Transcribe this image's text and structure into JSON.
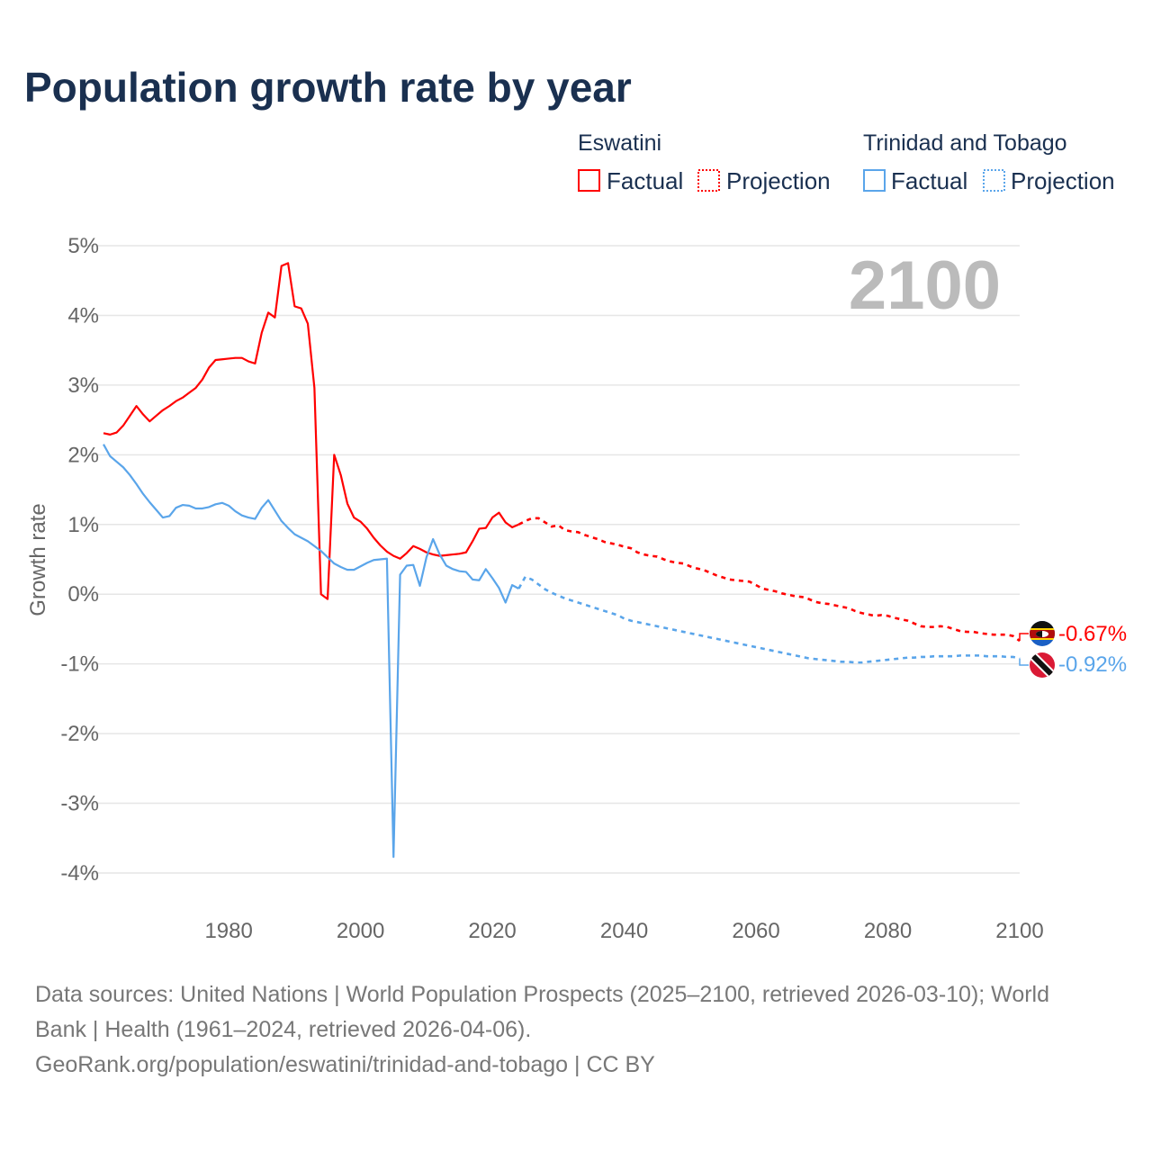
{
  "chart_data": {
    "type": "line",
    "title": "Population growth rate by year",
    "ylabel": "Growth rate",
    "xlabel": "",
    "xlim": [
      1961,
      2100
    ],
    "ylim": [
      -4,
      5
    ],
    "x_ticks": [
      "1980",
      "2000",
      "2020",
      "2040",
      "2060",
      "2080",
      "2100"
    ],
    "y_ticks": [
      "5%",
      "4%",
      "3%",
      "2%",
      "1%",
      "0%",
      "-1%",
      "-2%",
      "-3%",
      "-4%"
    ],
    "y_tick_values": [
      5,
      4,
      3,
      2,
      1,
      0,
      -1,
      -2,
      -3,
      -4
    ],
    "x_tick_values": [
      1980,
      2000,
      2020,
      2040,
      2060,
      2080,
      2100
    ],
    "current_year_label": "2100",
    "legend": {
      "groups": [
        {
          "country": "Eswatini",
          "factual": "Factual",
          "projection": "Projection"
        },
        {
          "country": "Trinidad and Tobago",
          "factual": "Factual",
          "projection": "Projection"
        }
      ]
    },
    "series": [
      {
        "name": "Eswatini",
        "color": "#ff0000",
        "end_label": "-0.67%",
        "factual_start_year": 1961,
        "factual": [
          2.31,
          2.29,
          2.32,
          2.42,
          2.56,
          2.7,
          2.58,
          2.48,
          2.56,
          2.64,
          2.7,
          2.77,
          2.82,
          2.89,
          2.96,
          3.08,
          3.25,
          3.36,
          3.37,
          3.38,
          3.39,
          3.39,
          3.34,
          3.31,
          3.75,
          4.04,
          3.97,
          4.71,
          4.75,
          4.13,
          4.1,
          3.88,
          2.96,
          0.0,
          -0.07,
          2.0,
          1.71,
          1.3,
          1.1,
          1.04,
          0.94,
          0.81,
          0.7,
          0.61,
          0.55,
          0.51,
          0.59,
          0.69,
          0.65,
          0.6,
          0.57,
          0.55,
          0.56,
          0.57,
          0.58,
          0.6,
          0.76,
          0.94,
          0.95,
          1.1,
          1.17,
          1.03,
          0.96,
          1.0
        ],
        "projection_start_year": 2025,
        "projection": [
          1.05,
          1.09,
          1.09,
          1.03,
          0.97,
          0.99,
          0.92,
          0.9,
          0.89,
          0.85,
          0.82,
          0.79,
          0.75,
          0.73,
          0.71,
          0.68,
          0.66,
          0.6,
          0.57,
          0.55,
          0.54,
          0.5,
          0.47,
          0.45,
          0.44,
          0.4,
          0.37,
          0.35,
          0.31,
          0.27,
          0.24,
          0.21,
          0.2,
          0.19,
          0.18,
          0.13,
          0.08,
          0.06,
          0.04,
          0.01,
          -0.01,
          -0.03,
          -0.04,
          -0.07,
          -0.11,
          -0.13,
          -0.14,
          -0.16,
          -0.18,
          -0.2,
          -0.24,
          -0.27,
          -0.29,
          -0.31,
          -0.3,
          -0.31,
          -0.34,
          -0.36,
          -0.38,
          -0.42,
          -0.46,
          -0.47,
          -0.47,
          -0.46,
          -0.47,
          -0.5,
          -0.53,
          -0.54,
          -0.54,
          -0.56,
          -0.57,
          -0.58,
          -0.58,
          -0.58,
          -0.6,
          -0.67
        ]
      },
      {
        "name": "Trinidad and Tobago",
        "color": "#5aa5ea",
        "end_label": "-0.92%",
        "factual_start_year": 1961,
        "factual": [
          2.15,
          1.98,
          1.9,
          1.82,
          1.71,
          1.58,
          1.44,
          1.32,
          1.21,
          1.1,
          1.12,
          1.24,
          1.28,
          1.27,
          1.23,
          1.23,
          1.25,
          1.29,
          1.31,
          1.27,
          1.19,
          1.13,
          1.1,
          1.08,
          1.24,
          1.35,
          1.2,
          1.05,
          0.95,
          0.86,
          0.81,
          0.76,
          0.69,
          0.62,
          0.53,
          0.44,
          0.39,
          0.35,
          0.35,
          0.4,
          0.45,
          0.49,
          0.5,
          0.51,
          -3.77,
          0.28,
          0.41,
          0.42,
          0.12,
          0.53,
          0.79,
          0.57,
          0.41,
          0.36,
          0.33,
          0.32,
          0.21,
          0.2,
          0.36,
          0.23,
          0.09,
          -0.12,
          0.13,
          0.08
        ],
        "projection_start_year": 2025,
        "projection": [
          0.25,
          0.21,
          0.14,
          0.07,
          0.02,
          -0.02,
          -0.06,
          -0.09,
          -0.12,
          -0.15,
          -0.18,
          -0.21,
          -0.24,
          -0.27,
          -0.3,
          -0.35,
          -0.38,
          -0.4,
          -0.42,
          -0.44,
          -0.46,
          -0.48,
          -0.5,
          -0.52,
          -0.54,
          -0.56,
          -0.58,
          -0.6,
          -0.62,
          -0.64,
          -0.66,
          -0.68,
          -0.7,
          -0.72,
          -0.74,
          -0.76,
          -0.78,
          -0.8,
          -0.82,
          -0.84,
          -0.86,
          -0.88,
          -0.9,
          -0.92,
          -0.93,
          -0.94,
          -0.95,
          -0.96,
          -0.97,
          -0.97,
          -0.98,
          -0.98,
          -0.97,
          -0.96,
          -0.95,
          -0.94,
          -0.93,
          -0.92,
          -0.91,
          -0.91,
          -0.9,
          -0.9,
          -0.89,
          -0.89,
          -0.89,
          -0.89,
          -0.88,
          -0.88,
          -0.88,
          -0.88,
          -0.89,
          -0.89,
          -0.89,
          -0.9,
          -0.9,
          -0.92
        ]
      }
    ]
  },
  "footer": {
    "line1": "Data sources: United Nations | World Population Prospects (2025–2100, retrieved 2026-03-10); World",
    "line2": "Bank | Health (1961–2024, retrieved 2026-04-06).",
    "line3": "GeoRank.org/population/eswatini/trinidad-and-tobago | CC BY"
  }
}
